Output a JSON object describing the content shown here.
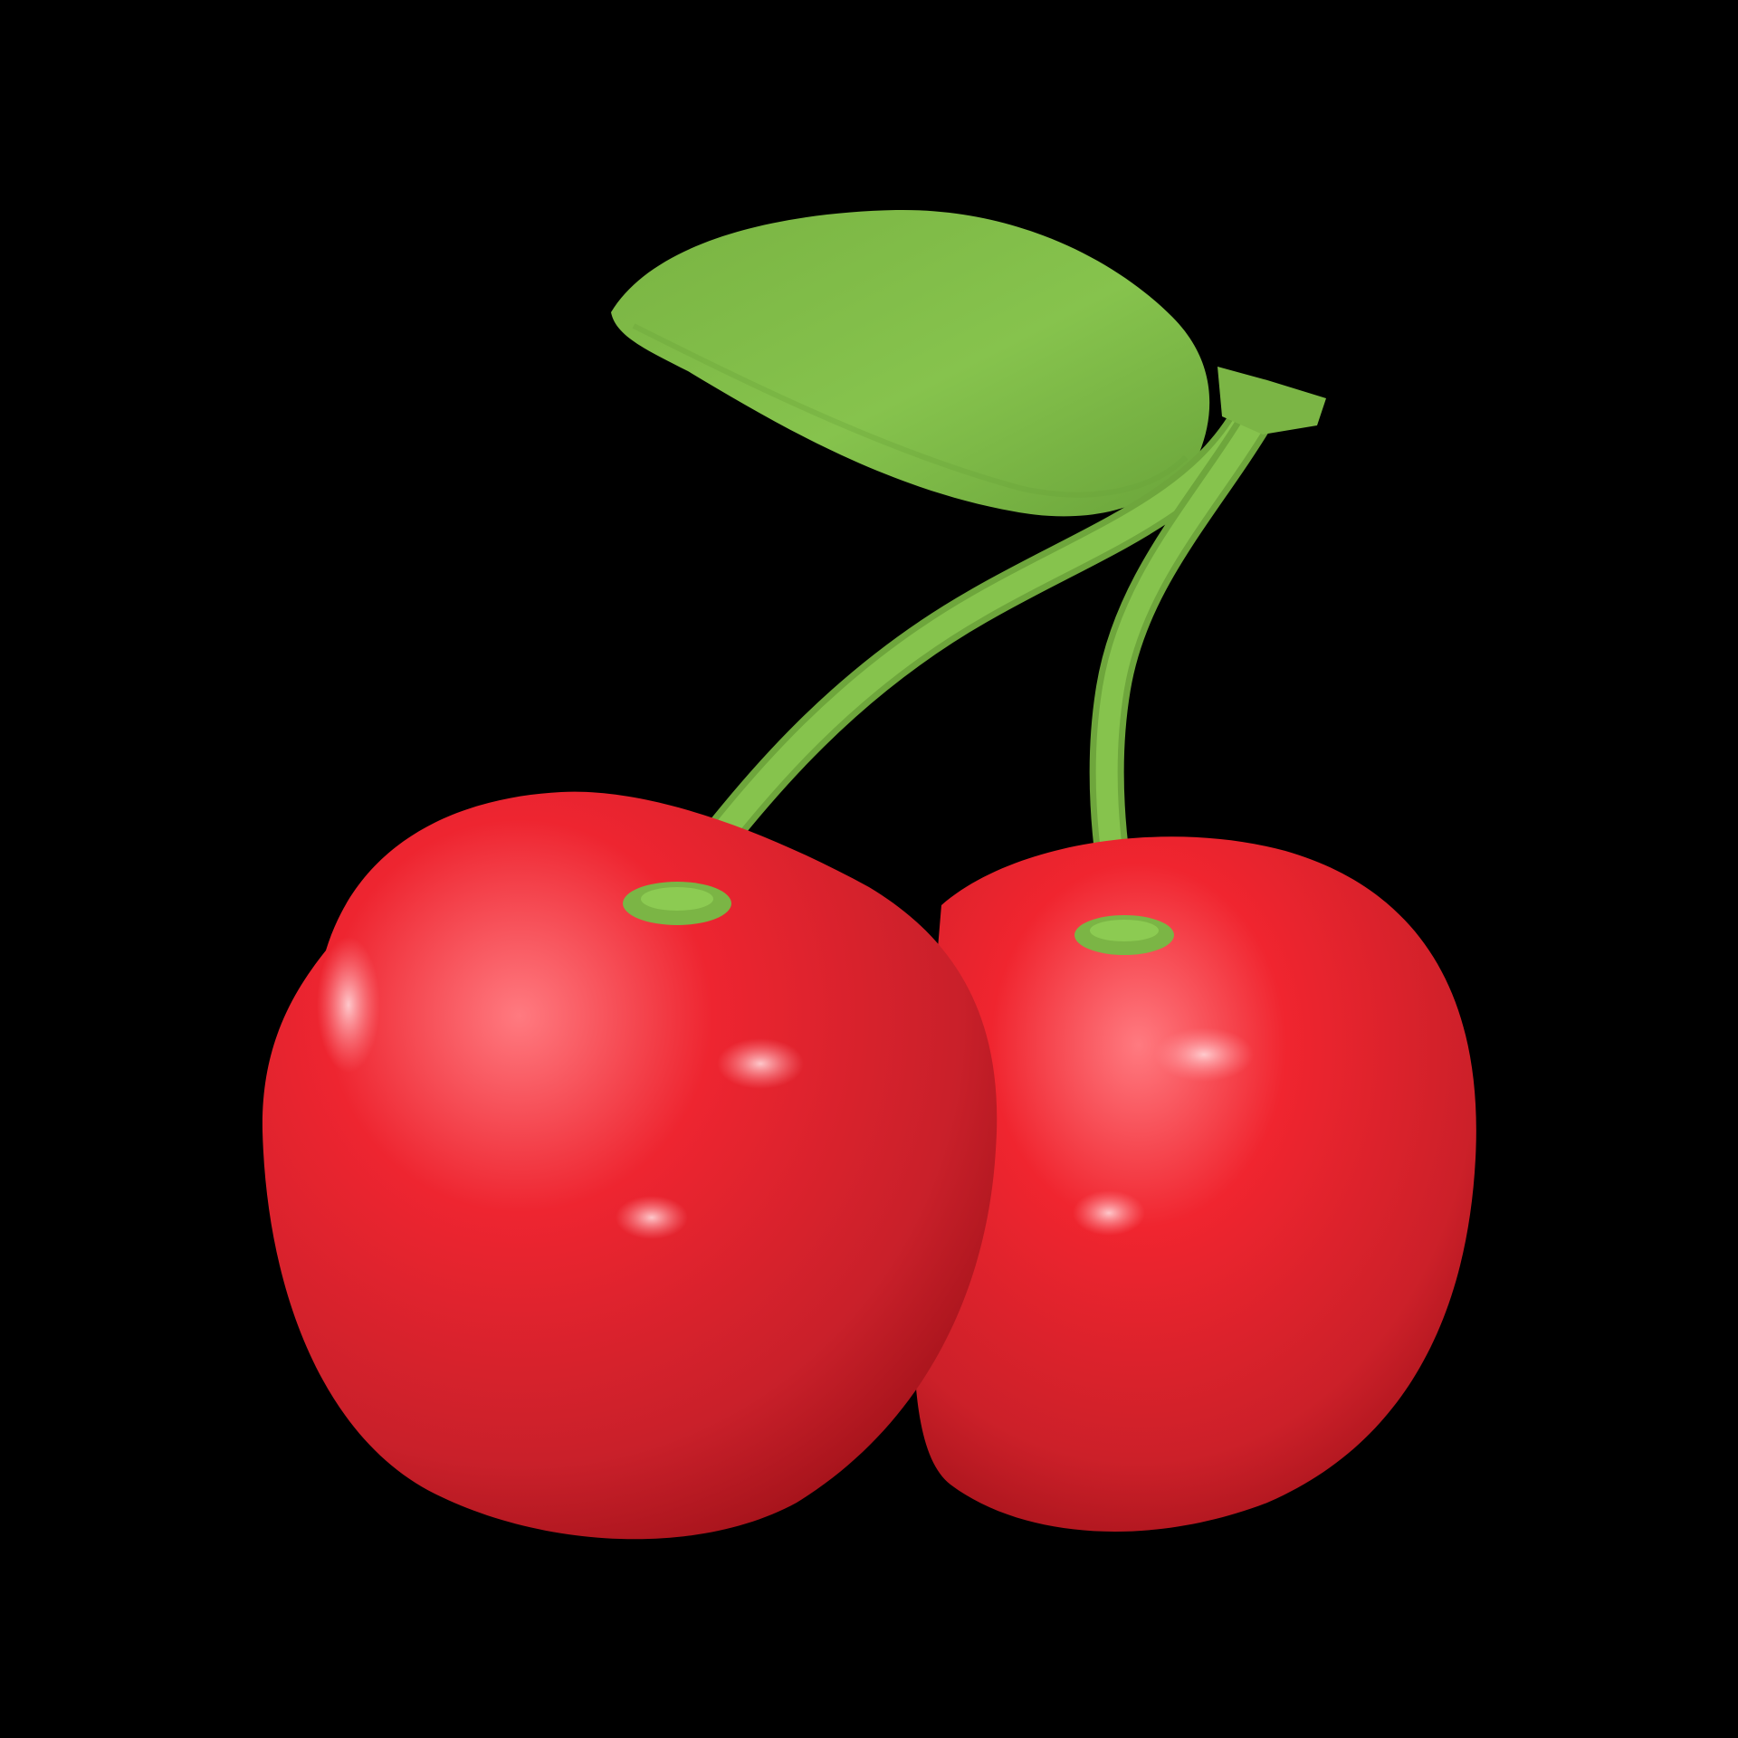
{
  "image": {
    "subject": "cherry-pair-icon",
    "background_color": "#000000",
    "colors": {
      "cherry_red": "#e8232e",
      "cherry_highlight": "#ff6b73",
      "cherry_shadow": "#a8141c",
      "stem_green": "#7bb545",
      "leaf_green": "#86c34d",
      "leaf_shadow": "#5f9633"
    }
  }
}
